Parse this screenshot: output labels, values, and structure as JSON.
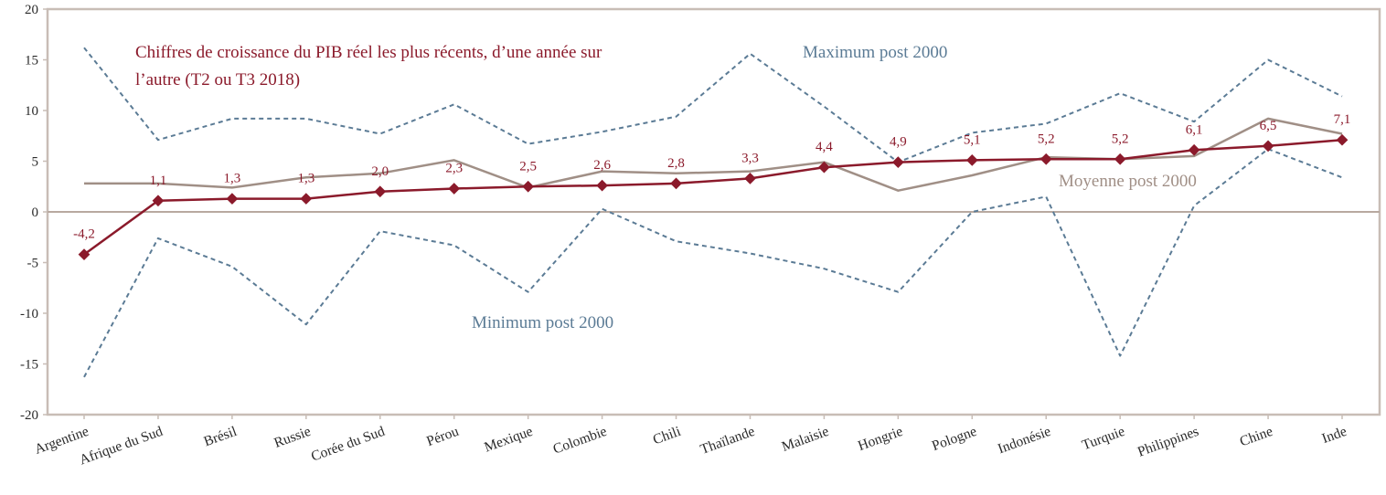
{
  "chart_data": {
    "type": "line",
    "title": "Chiffres de croissance du PIB réel les plus récents, d’une année sur l’autre (T2 ou T3 2018)",
    "title_lines": [
      "Chiffres de croissance du PIB réel les plus récents, d’une année sur",
      "l’autre (T2 ou T3 2018)"
    ],
    "xlabel": "",
    "ylabel": "",
    "ylim": [
      -20,
      20
    ],
    "yticks": [
      20,
      15,
      10,
      5,
      0,
      -5,
      -10,
      -15,
      -20
    ],
    "grid": false,
    "categories": [
      "Argentine",
      "Afrique du Sud",
      "Brésil",
      "Russie",
      "Corée du Sud",
      "Pérou",
      "Mexique",
      "Colombie",
      "Chili",
      "Thaïlande",
      "Malaisie",
      "Hongrie",
      "Pologne",
      "Indonésie",
      "Turquie",
      "Philippines",
      "Chine",
      "Inde"
    ],
    "series": [
      {
        "key": "latest",
        "values": [
          -4.2,
          1.1,
          1.3,
          1.3,
          2.0,
          2.3,
          2.5,
          2.6,
          2.8,
          3.3,
          4.4,
          4.9,
          5.1,
          5.2,
          5.2,
          6.1,
          6.5,
          7.1
        ],
        "labels": [
          "-4,2",
          "1,1",
          "1,3",
          "1,3",
          "2,0",
          "2,3",
          "2,5",
          "2,6",
          "2,8",
          "3,3",
          "4,4",
          "4,9",
          "5,1",
          "5,2",
          "5,2",
          "6,1",
          "6,5",
          "7,1"
        ],
        "color": "#8b1a2b",
        "style": "solid-markers"
      },
      {
        "key": "max",
        "name": "Maximum post 2000",
        "values": [
          16.2,
          7.1,
          9.2,
          9.2,
          7.7,
          10.6,
          6.7,
          7.9,
          9.4,
          15.6,
          10.4,
          4.9,
          7.8,
          8.7,
          11.7,
          8.9,
          15.0,
          11.4
        ],
        "color": "#5b7b95",
        "style": "dashed"
      },
      {
        "key": "mean",
        "name": "Moyenne post 2000",
        "values": [
          2.8,
          2.8,
          2.4,
          3.4,
          3.8,
          5.1,
          2.4,
          4.0,
          3.8,
          4.0,
          4.9,
          2.1,
          3.6,
          5.4,
          5.2,
          5.5,
          9.2,
          7.7
        ],
        "color": "#a08f86",
        "style": "solid"
      },
      {
        "key": "min",
        "name": "Minimum post 2000",
        "values": [
          -16.3,
          -2.6,
          -5.4,
          -11.1,
          -1.9,
          -3.3,
          -7.9,
          0.3,
          -2.9,
          -4.1,
          -5.6,
          -7.9,
          0.0,
          1.5,
          -14.2,
          0.6,
          6.2,
          3.4
        ],
        "color": "#5b7b95",
        "style": "dashed"
      }
    ],
    "colors": {
      "title": "#8b1a2b",
      "frame": "#c8bdb6",
      "zero_line": "#b8a9a0",
      "ticks_text": "#2a2a2a"
    }
  }
}
